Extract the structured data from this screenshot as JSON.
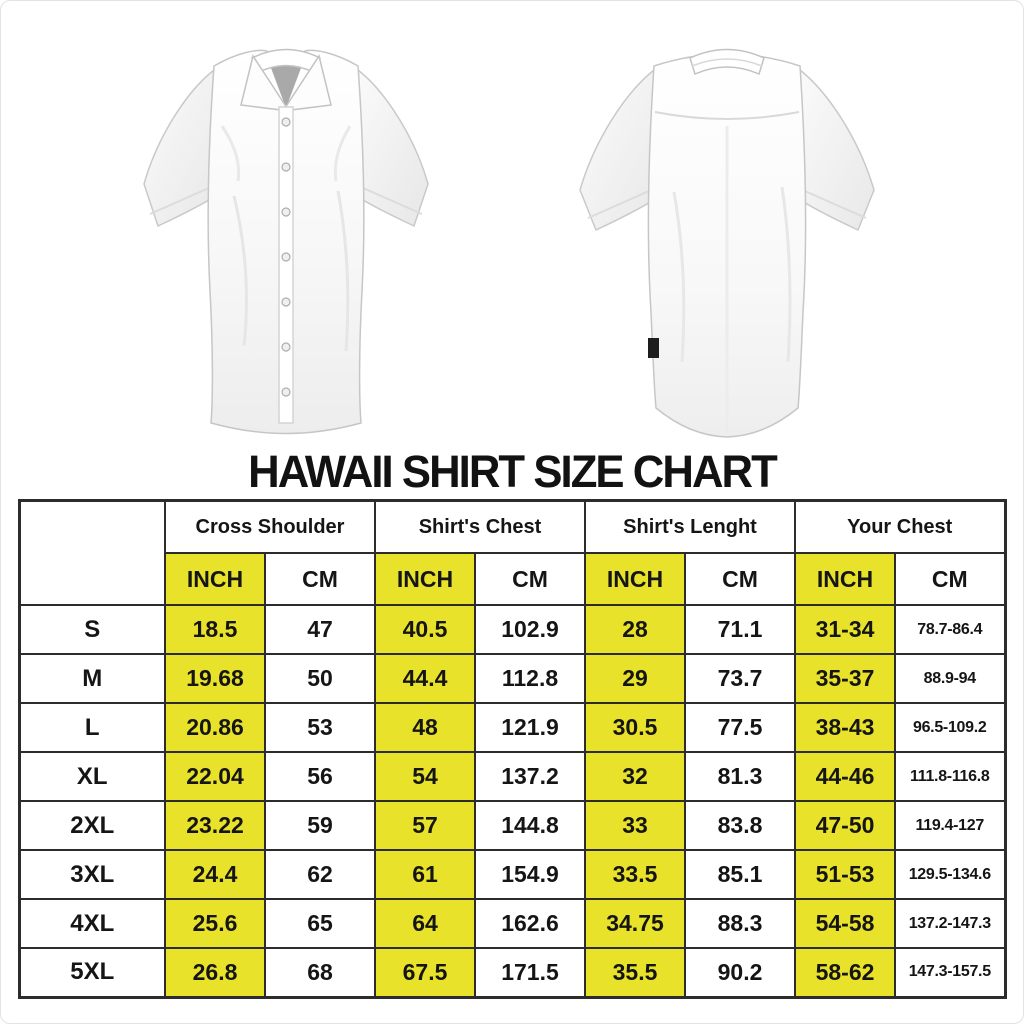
{
  "title": "HAWAII SHIRT SIZE CHART",
  "images": {
    "front_label": "white short-sleeve shirt front view",
    "back_label": "white short-sleeve shirt back view"
  },
  "colors": {
    "highlight_yellow": "#e8e22b",
    "table_border": "#2c2c2c",
    "text": "#151515"
  },
  "table": {
    "corner_label": "",
    "column_groups": [
      "Cross Shoulder",
      "Shirt's Chest",
      "Shirt's Lenght",
      "Your Chest"
    ],
    "unit_labels": [
      "INCH",
      "CM"
    ],
    "rows": [
      {
        "size": "S",
        "values": [
          "18.5",
          "47",
          "40.5",
          "102.9",
          "28",
          "71.1",
          "31-34",
          "78.7-86.4"
        ]
      },
      {
        "size": "M",
        "values": [
          "19.68",
          "50",
          "44.4",
          "112.8",
          "29",
          "73.7",
          "35-37",
          "88.9-94"
        ]
      },
      {
        "size": "L",
        "values": [
          "20.86",
          "53",
          "48",
          "121.9",
          "30.5",
          "77.5",
          "38-43",
          "96.5-109.2"
        ]
      },
      {
        "size": "XL",
        "values": [
          "22.04",
          "56",
          "54",
          "137.2",
          "32",
          "81.3",
          "44-46",
          "111.8-116.8"
        ]
      },
      {
        "size": "2XL",
        "values": [
          "23.22",
          "59",
          "57",
          "144.8",
          "33",
          "83.8",
          "47-50",
          "119.4-127"
        ]
      },
      {
        "size": "3XL",
        "values": [
          "24.4",
          "62",
          "61",
          "154.9",
          "33.5",
          "85.1",
          "51-53",
          "129.5-134.6"
        ]
      },
      {
        "size": "4XL",
        "values": [
          "25.6",
          "65",
          "64",
          "162.6",
          "34.75",
          "88.3",
          "54-58",
          "137.2-147.3"
        ]
      },
      {
        "size": "5XL",
        "values": [
          "26.8",
          "68",
          "67.5",
          "171.5",
          "35.5",
          "90.2",
          "58-62",
          "147.3-157.5"
        ]
      }
    ]
  }
}
